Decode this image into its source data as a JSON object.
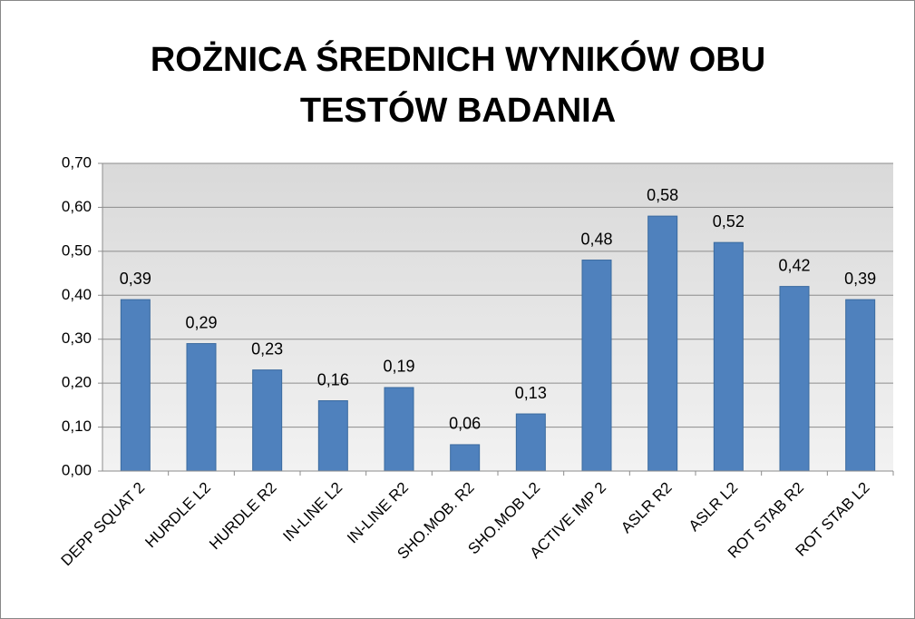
{
  "chart_data": {
    "type": "bar",
    "title": "ROŻNICA ŚREDNICH WYNIKÓW OBU TESTÓW BADANIA",
    "categories": [
      "DEPP SQUAT 2",
      "HURDLE L2",
      "HURDLE R2",
      "IN-LINE L2",
      "IN-LINE R2",
      "SHO.MOB. R2",
      "SHO.MOB L2",
      "ACTIVE IMP 2",
      "ASLR R2",
      "ASLR L2",
      "ROT STAB R2",
      "ROT STAB L2"
    ],
    "values": [
      0.39,
      0.29,
      0.23,
      0.16,
      0.19,
      0.06,
      0.13,
      0.48,
      0.58,
      0.52,
      0.42,
      0.39
    ],
    "value_labels": [
      "0,39",
      "0,29",
      "0,23",
      "0,16",
      "0,19",
      "0,06",
      "0,13",
      "0,48",
      "0,58",
      "0,52",
      "0,42",
      "0,39"
    ],
    "color": "#4f81bd",
    "ylim": [
      0,
      0.7
    ],
    "yticks": [
      {
        "value": 0,
        "label": "0,00"
      },
      {
        "value": 0.1,
        "label": "0,10"
      },
      {
        "value": 0.2,
        "label": "0,20"
      },
      {
        "value": 0.3,
        "label": "0,30"
      },
      {
        "value": 0.4,
        "label": "0,40"
      },
      {
        "value": 0.5,
        "label": "0,50"
      },
      {
        "value": 0.6,
        "label": "0,60"
      },
      {
        "value": 0.7,
        "label": "0,70"
      }
    ],
    "grid": true
  }
}
